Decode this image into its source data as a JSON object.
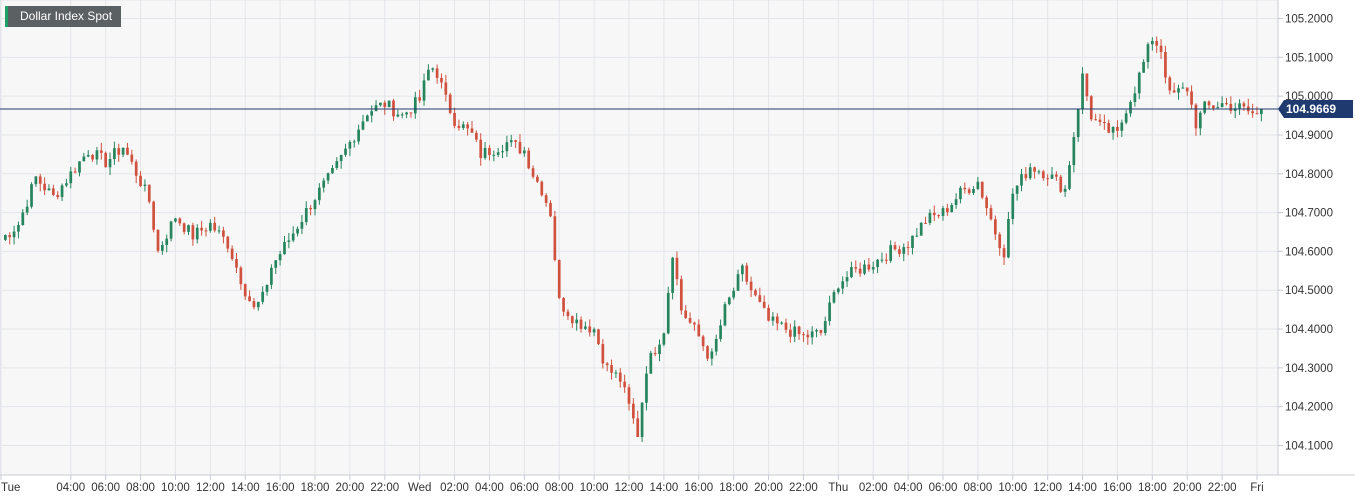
{
  "chart_data": {
    "type": "candlestick",
    "title": "Dollar Index Spot",
    "last_price": 104.9669,
    "last_price_label": "104.9669",
    "ylim": [
      104.05,
      105.24
    ],
    "y_ticks": [
      {
        "value": 105.2,
        "label": "105.2000"
      },
      {
        "value": 105.1,
        "label": "105.1000"
      },
      {
        "value": 105.0,
        "label": "105.0000"
      },
      {
        "value": 104.9,
        "label": "104.9000"
      },
      {
        "value": 104.8,
        "label": "104.8000"
      },
      {
        "value": 104.7,
        "label": "104.7000"
      },
      {
        "value": 104.6,
        "label": "104.6000"
      },
      {
        "value": 104.5,
        "label": "104.5000"
      },
      {
        "value": 104.4,
        "label": "104.4000"
      },
      {
        "value": 104.3,
        "label": "104.3000"
      },
      {
        "value": 104.2,
        "label": "104.2000"
      },
      {
        "value": 104.1,
        "label": "104.1000"
      }
    ],
    "x_ticks": [
      {
        "hour": 0,
        "label": "Tue"
      },
      {
        "hour": 4,
        "label": "04:00"
      },
      {
        "hour": 6,
        "label": "06:00"
      },
      {
        "hour": 8,
        "label": "08:00"
      },
      {
        "hour": 10,
        "label": "10:00"
      },
      {
        "hour": 12,
        "label": "12:00"
      },
      {
        "hour": 14,
        "label": "14:00"
      },
      {
        "hour": 16,
        "label": "16:00"
      },
      {
        "hour": 18,
        "label": "18:00"
      },
      {
        "hour": 20,
        "label": "20:00"
      },
      {
        "hour": 22,
        "label": "22:00"
      },
      {
        "hour": 24,
        "label": "Wed"
      },
      {
        "hour": 26,
        "label": "02:00"
      },
      {
        "hour": 28,
        "label": "04:00"
      },
      {
        "hour": 30,
        "label": "06:00"
      },
      {
        "hour": 32,
        "label": "08:00"
      },
      {
        "hour": 34,
        "label": "10:00"
      },
      {
        "hour": 36,
        "label": "12:00"
      },
      {
        "hour": 38,
        "label": "14:00"
      },
      {
        "hour": 40,
        "label": "16:00"
      },
      {
        "hour": 42,
        "label": "18:00"
      },
      {
        "hour": 44,
        "label": "20:00"
      },
      {
        "hour": 46,
        "label": "22:00"
      },
      {
        "hour": 48,
        "label": "Thu"
      },
      {
        "hour": 50,
        "label": "02:00"
      },
      {
        "hour": 52,
        "label": "04:00"
      },
      {
        "hour": 54,
        "label": "06:00"
      },
      {
        "hour": 56,
        "label": "08:00"
      },
      {
        "hour": 58,
        "label": "10:00"
      },
      {
        "hour": 60,
        "label": "12:00"
      },
      {
        "hour": 62,
        "label": "14:00"
      },
      {
        "hour": 64,
        "label": "16:00"
      },
      {
        "hour": 66,
        "label": "18:00"
      },
      {
        "hour": 68,
        "label": "20:00"
      },
      {
        "hour": 70,
        "label": "22:00"
      },
      {
        "hour": 72,
        "label": "Fri"
      }
    ],
    "x_range_hours": [
      0,
      73.2
    ],
    "candle_interval_hours": 0.25,
    "up_color": "#26855f",
    "down_color": "#d1513f",
    "price_line_color": "#1f3a6e",
    "key_points": [
      [
        0,
        104.63
      ],
      [
        1,
        104.67
      ],
      [
        2,
        104.79
      ],
      [
        3,
        104.74
      ],
      [
        4,
        104.8
      ],
      [
        5,
        104.86
      ],
      [
        6,
        104.83
      ],
      [
        7,
        104.87
      ],
      [
        8,
        104.78
      ],
      [
        8.5,
        104.73
      ],
      [
        9,
        104.6
      ],
      [
        10,
        104.69
      ],
      [
        11,
        104.64
      ],
      [
        12,
        104.67
      ],
      [
        13,
        104.62
      ],
      [
        14,
        104.5
      ],
      [
        14.5,
        104.45
      ],
      [
        15,
        104.48
      ],
      [
        15.5,
        104.56
      ],
      [
        16.5,
        104.63
      ],
      [
        18,
        104.74
      ],
      [
        19,
        104.8
      ],
      [
        20,
        104.88
      ],
      [
        21,
        104.96
      ],
      [
        22,
        104.98
      ],
      [
        23,
        104.95
      ],
      [
        24,
        104.99
      ],
      [
        24.6,
        105.08
      ],
      [
        25,
        105.06
      ],
      [
        25.5,
        104.99
      ],
      [
        26,
        104.94
      ],
      [
        27,
        104.9
      ],
      [
        27.5,
        104.85
      ],
      [
        29,
        104.88
      ],
      [
        30,
        104.86
      ],
      [
        30.5,
        104.8
      ],
      [
        31,
        104.76
      ],
      [
        31.5,
        104.7
      ],
      [
        32,
        104.47
      ],
      [
        33,
        104.42
      ],
      [
        34,
        104.4
      ],
      [
        34.7,
        104.3
      ],
      [
        35.5,
        104.27
      ],
      [
        36.5,
        104.13
      ],
      [
        37,
        104.3
      ],
      [
        38,
        104.4
      ],
      [
        38.5,
        104.6
      ],
      [
        39,
        104.45
      ],
      [
        40,
        104.38
      ],
      [
        40.7,
        104.32
      ],
      [
        41.5,
        104.45
      ],
      [
        42.5,
        104.55
      ],
      [
        43,
        104.5
      ],
      [
        44,
        104.42
      ],
      [
        45,
        104.4
      ],
      [
        46,
        104.38
      ],
      [
        47,
        104.39
      ],
      [
        48,
        104.52
      ],
      [
        49,
        104.55
      ],
      [
        50,
        104.57
      ],
      [
        51,
        104.6
      ],
      [
        52,
        104.62
      ],
      [
        53,
        104.68
      ],
      [
        54,
        104.7
      ],
      [
        55,
        104.75
      ],
      [
        56,
        104.78
      ],
      [
        57,
        104.65
      ],
      [
        57.5,
        104.6
      ],
      [
        58,
        104.75
      ],
      [
        59,
        104.82
      ],
      [
        60,
        104.8
      ],
      [
        61,
        104.76
      ],
      [
        61.5,
        104.9
      ],
      [
        62,
        105.05
      ],
      [
        62.5,
        104.95
      ],
      [
        63,
        104.92
      ],
      [
        64,
        104.9
      ],
      [
        64.5,
        104.97
      ],
      [
        65,
        105.02
      ],
      [
        66,
        105.15
      ],
      [
        66.5,
        105.12
      ],
      [
        67,
        105.0
      ],
      [
        68,
        105.02
      ],
      [
        68.5,
        104.93
      ],
      [
        69,
        104.97
      ],
      [
        70,
        104.98
      ],
      [
        71,
        104.97
      ],
      [
        72,
        104.95
      ],
      [
        72.2,
        104.9669
      ]
    ]
  }
}
